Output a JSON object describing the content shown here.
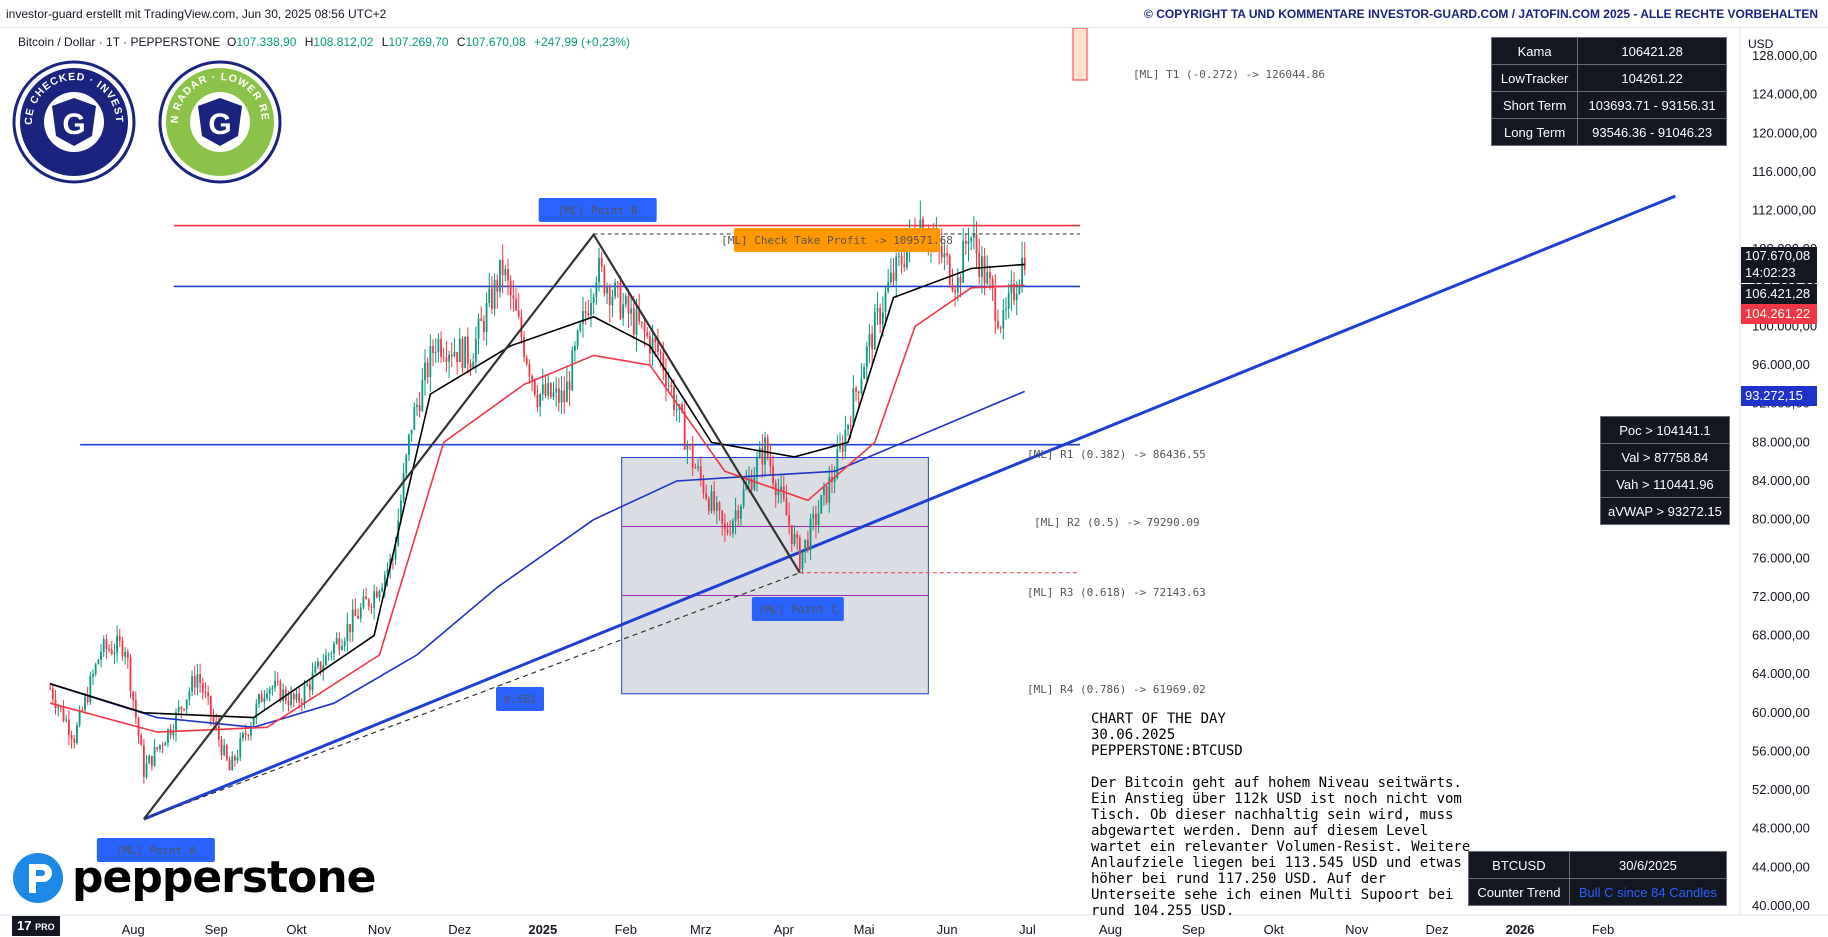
{
  "header": {
    "credit": "investor-guard erstellt mit TradingView.com, Jun 30, 2025 08:56 UTC+2",
    "copyright": "© COPYRIGHT TA UND KOMMENTARE INVESTOR-GUARD.COM / JATOFIN.COM 2025 - ALLE RECHTE VORBEHALTEN"
  },
  "legend": {
    "symbol": "Bitcoin / Dollar · 1T · PEPPERSTONE",
    "o_label": "O",
    "o": "107.338,90",
    "h_label": "H",
    "h": "108.812,02",
    "l_label": "L",
    "l": "107.269,70",
    "c_label": "C",
    "c": "107.670,08",
    "change": "+247,99 (+0,23%)"
  },
  "badges": {
    "left": {
      "text": "COMPLIANCE CHECKED · INVESTOR-GUARD",
      "icon": "g-shield-icon",
      "color": "#1a237e"
    },
    "right": {
      "text": "PATTERN RADAR · LOWER REVERSAL",
      "icon": "g-shield-icon",
      "color": "#8bc34a"
    }
  },
  "indicator_table": [
    {
      "label": "Kama",
      "value": "106421.28"
    },
    {
      "label": "LowTracker",
      "value": "104261.22"
    },
    {
      "label": "Short Term",
      "value": "103693.71 - 93156.31"
    },
    {
      "label": "Long Term",
      "value": "93546.36 - 91046.23"
    }
  ],
  "volume_table": [
    {
      "text": "Poc > 104141.1"
    },
    {
      "text": "Val > 87758.84"
    },
    {
      "text": "Vah > 110441.96"
    },
    {
      "text": "aVWAP > 93272.15"
    }
  ],
  "bottom_table": {
    "symbol": "BTCUSD",
    "date": "30/6/2025",
    "trend_label": "Counter Trend",
    "trend_value": "Bull C since 84 Candles"
  },
  "commentary": {
    "title": "CHART OF THE DAY",
    "date": "30.06.2025",
    "ticker": "PEPPERSTONE:BTCUSD",
    "body": "Der Bitcoin geht auf hohem Niveau seitwärts. Ein Anstieg über 112k USD ist noch nicht vom Tisch. Ob dieser nachhaltig sein wird, muss abgewartet werden. Denn auf diesem Level wartet ein relevanter Volumen-Resist. Weitere Anlaufziele liegen bei 113.545 USD und etwas höher bei rund 117.250 USD. Auf der Unterseite sehe ich einen Multi Supoort bei rund 104.255 USD."
  },
  "price_tags": {
    "last": "107.670,08",
    "countdown": "14:02:23",
    "kama": "106.421,28",
    "lowtracker": "104.261,22",
    "vwap": "93.272,15",
    "currency": "USD"
  },
  "logo": {
    "text": "pepperstone",
    "icon": "pepperstone-p-icon",
    "tv": "17",
    "tv_pro": "PRO"
  },
  "colors": {
    "up": "#089981",
    "down": "#f23645",
    "trend": "#1e3fd6",
    "resistance": "#f23645",
    "kama": "#000000",
    "lowtracker": "#f23645",
    "vwap": "#2033c9",
    "box": "#d1d4dc"
  },
  "chart_data": {
    "type": "candlestick",
    "title": "",
    "xlabel": "",
    "ylabel": "USD",
    "ylim": [
      40000,
      128000
    ],
    "y_ticks": [
      "128.000,00",
      "124.000,00",
      "120.000,00",
      "116.000,00",
      "112.000,00",
      "108.000,00",
      "104.000,00",
      "100.000,00",
      "96.000,00",
      "92.000,00",
      "88.000,00",
      "84.000,00",
      "80.000,00",
      "76.000,00",
      "72.000,00",
      "68.000,00",
      "64.000,00",
      "60.000,00",
      "56.000,00",
      "52.000,00",
      "48.000,00",
      "44.000,00",
      "40.000,00"
    ],
    "x_ticks": [
      "Jul",
      "Aug",
      "Sep",
      "Okt",
      "Nov",
      "Dez",
      "2025",
      "Feb",
      "Mrz",
      "Apr",
      "Mai",
      "Jun",
      "Jul",
      "Aug",
      "Sep",
      "Okt",
      "Nov",
      "Dez",
      "2026",
      "Feb"
    ],
    "x_ticks_bold": [
      "2025",
      "2026"
    ],
    "close_path": [
      [
        "2024-07-01",
        62500
      ],
      [
        "2024-07-10",
        57500
      ],
      [
        "2024-07-20",
        66500
      ],
      [
        "2024-07-29",
        67000
      ],
      [
        "2024-08-05",
        54000
      ],
      [
        "2024-08-15",
        58500
      ],
      [
        "2024-08-25",
        64000
      ],
      [
        "2024-09-06",
        54000
      ],
      [
        "2024-09-20",
        63000
      ],
      [
        "2024-10-01",
        61000
      ],
      [
        "2024-10-15",
        67000
      ],
      [
        "2024-10-29",
        72000
      ],
      [
        "2024-11-06",
        76000
      ],
      [
        "2024-11-13",
        90000
      ],
      [
        "2024-11-22",
        98500
      ],
      [
        "2024-12-05",
        97000
      ],
      [
        "2024-12-17",
        106000
      ],
      [
        "2024-12-30",
        93000
      ],
      [
        "2025-01-09",
        92500
      ],
      [
        "2025-01-21",
        106000
      ],
      [
        "2025-01-31",
        102000
      ],
      [
        "2025-02-14",
        97000
      ],
      [
        "2025-02-26",
        86000
      ],
      [
        "2025-03-10",
        78500
      ],
      [
        "2025-03-25",
        87500
      ],
      [
        "2025-04-07",
        76000
      ],
      [
        "2025-04-20",
        85000
      ],
      [
        "2025-05-01",
        96500
      ],
      [
        "2025-05-10",
        104000
      ],
      [
        "2025-05-22",
        111000
      ],
      [
        "2025-06-05",
        104500
      ],
      [
        "2025-06-09",
        110000
      ],
      [
        "2025-06-22",
        100000
      ],
      [
        "2025-06-30",
        107670
      ]
    ],
    "kama_path": [
      [
        "2024-07-01",
        63000
      ],
      [
        "2024-08-05",
        60000
      ],
      [
        "2024-09-15",
        59500
      ],
      [
        "2024-10-30",
        68000
      ],
      [
        "2024-11-20",
        93000
      ],
      [
        "2024-12-20",
        98000
      ],
      [
        "2025-01-20",
        101000
      ],
      [
        "2025-02-10",
        98000
      ],
      [
        "2025-03-05",
        88000
      ],
      [
        "2025-04-05",
        86500
      ],
      [
        "2025-04-25",
        88000
      ],
      [
        "2025-05-12",
        103000
      ],
      [
        "2025-06-10",
        106000
      ],
      [
        "2025-06-30",
        106421
      ]
    ],
    "lowtracker_path": [
      [
        "2024-07-01",
        61000
      ],
      [
        "2024-08-10",
        58000
      ],
      [
        "2024-09-20",
        58500
      ],
      [
        "2024-11-01",
        66000
      ],
      [
        "2024-11-25",
        88000
      ],
      [
        "2024-12-25",
        94000
      ],
      [
        "2025-01-20",
        97000
      ],
      [
        "2025-02-10",
        96000
      ],
      [
        "2025-03-10",
        85000
      ],
      [
        "2025-04-10",
        82000
      ],
      [
        "2025-05-05",
        88000
      ],
      [
        "2025-05-20",
        100000
      ],
      [
        "2025-06-10",
        104000
      ],
      [
        "2025-06-30",
        104261
      ]
    ],
    "vwap_path": [
      [
        "2024-07-01",
        63000
      ],
      [
        "2024-08-10",
        59500
      ],
      [
        "2024-09-15",
        58500
      ],
      [
        "2024-10-15",
        61000
      ],
      [
        "2024-11-15",
        66000
      ],
      [
        "2024-12-15",
        73000
      ],
      [
        "2025-01-20",
        80000
      ],
      [
        "2025-02-20",
        84000
      ],
      [
        "2025-03-20",
        84500
      ],
      [
        "2025-04-20",
        85000
      ],
      [
        "2025-05-20",
        88500
      ],
      [
        "2025-06-30",
        93272
      ]
    ],
    "horizontal_levels": [
      {
        "name": "Poc",
        "value": 104141.1,
        "color": "#1e3fd6",
        "from": "2024-08-05",
        "to": "2025-06-30"
      },
      {
        "name": "Val",
        "value": 87758.84,
        "color": "#1e3fd6",
        "from": "2024-07-01",
        "to": "2025-06-30"
      },
      {
        "name": "Vah",
        "value": 110441.96,
        "color": "#f23645",
        "from": "2024-08-05",
        "to": "2025-06-30"
      }
    ],
    "trendline": {
      "from": [
        "2024-08-05",
        49000
      ],
      "to": [
        "2026-02-28",
        113500
      ],
      "color": "#1e3fd6",
      "label": "0.581"
    },
    "pitchfork": {
      "point_a": {
        "date": "2024-08-05",
        "value": 49000,
        "label": "[ML] Point A"
      },
      "point_b": {
        "date": "2025-01-20",
        "value": 109500,
        "label": "[ML] Point B"
      },
      "point_c": {
        "date": "2025-04-07",
        "value": 74500,
        "label": "[ML]  Point  C"
      },
      "take_profit": {
        "value": 109571.68,
        "label": "[ML] Check Take Profit -> 109571.68"
      },
      "targets": [
        {
          "label": "[ML] T1 (-0.272) -> 126044.86",
          "value": 126044.86
        },
        {
          "label": "[ML] R1 (0.382) -> 86436.55",
          "value": 86436.55
        },
        {
          "label": "[ML] R2 (0.5) -> 79290.09",
          "value": 79290.09
        },
        {
          "label": "[ML] R3 (0.618) -> 72143.63",
          "value": 72143.63
        },
        {
          "label": "[ML] R4 (0.786) -> 61969.02",
          "value": 61969.02
        }
      ]
    },
    "retracement_box": {
      "from": "2025-01-20",
      "to": "2025-05-25",
      "top": 86436.55,
      "bottom": 61969.02,
      "mid_lines": [
        79290.09,
        72143.63
      ]
    }
  }
}
